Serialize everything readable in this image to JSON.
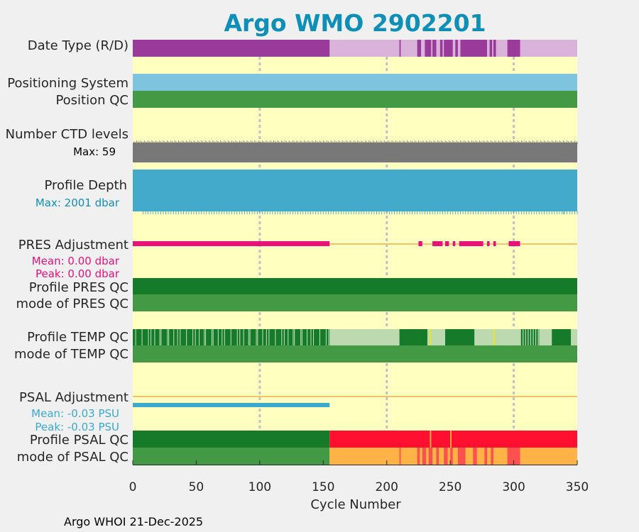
{
  "chart_data": {
    "type": "timeline-strip",
    "title": "Argo WMO 2902201",
    "xlabel": "Cycle Number",
    "xlim": [
      0,
      350
    ],
    "xticks": [
      0,
      50,
      100,
      150,
      200,
      250,
      300,
      350
    ],
    "grid_x": [
      100,
      200,
      300
    ],
    "footer": "Argo WHOI 21-Dec-2025",
    "colors": {
      "background": "#ffffc0",
      "title": "#0e8fb8",
      "real_time": "#dab3da",
      "delayed": "#9a3a9a",
      "positioning": "#7ec4df",
      "qc_good": "#449944",
      "qc_dark": "#157a2a",
      "qc_light": "#bcd9b0",
      "qc_yellow": "#f2e600",
      "qc_bad": "#ff1030",
      "qc_orange": "#ffb347",
      "qc_mixed": "#ff5050",
      "ctd": "#787878",
      "depth": "#44aacc",
      "pres": "#e8107a",
      "zero_line": "#f5c26b",
      "psal": "#3aa9cf"
    },
    "rows": {
      "data_type": {
        "label": "Date Type (R/D)",
        "realtime_cycles": [
          155,
          350
        ],
        "delayed_cycles": [
          [
            0,
            155
          ],
          [
            210,
            211
          ],
          [
            224,
            227
          ],
          [
            230,
            235
          ],
          [
            236,
            239
          ],
          [
            242,
            244
          ],
          [
            245,
            252
          ],
          [
            254,
            256
          ],
          [
            258,
            279
          ],
          [
            281,
            283
          ],
          [
            284,
            286
          ],
          [
            295,
            305
          ]
        ]
      },
      "positioning": {
        "label": "Positioning System"
      },
      "position_qc": {
        "label": "Position QC"
      },
      "ctd_levels": {
        "label": "Number CTD levels",
        "max_text": "Max: 59",
        "max": 59
      },
      "profile_depth": {
        "label": "Profile Depth",
        "max_text": "Max: 2001 dbar",
        "max_dbar": 2001
      },
      "pres_adjustment": {
        "label": "PRES Adjustment",
        "mean_text": "Mean: 0.00 dbar",
        "peak_text": "Peak: 0.00 dbar",
        "mean_dbar": 0.0,
        "peak_dbar": 0.0,
        "segments": [
          [
            0,
            155
          ],
          [
            225,
            228
          ],
          [
            236,
            244
          ],
          [
            246,
            249
          ],
          [
            252,
            254
          ],
          [
            257,
            276
          ],
          [
            279,
            281
          ],
          [
            284,
            286
          ],
          [
            296,
            305
          ]
        ]
      },
      "profile_pres_qc": {
        "label": "Profile PRES QC"
      },
      "mode_pres_qc": {
        "label": "mode of PRES QC"
      },
      "profile_temp_qc": {
        "label": "Profile TEMP QC",
        "light": [
          [
            155,
            210
          ],
          [
            232,
            246
          ],
          [
            269,
            305
          ],
          [
            320,
            330
          ],
          [
            345,
            350
          ]
        ],
        "yellow": [
          234,
          284
        ]
      },
      "mode_temp_qc": {
        "label": "mode of TEMP QC"
      },
      "psal_adjustment": {
        "label": "PSAL Adjustment",
        "mean_text": "Mean: -0.03 PSU",
        "peak_text": "Peak: -0.03 PSU",
        "mean_psu": -0.03,
        "peak_psu": -0.03,
        "segments": [
          [
            0,
            155
          ]
        ]
      },
      "profile_psal_qc": {
        "label": "Profile PSAL QC",
        "good": [
          0,
          155
        ],
        "bad": [
          155,
          350
        ]
      },
      "mode_psal_qc": {
        "label": "mode of PSAL QC",
        "good": [
          0,
          155
        ],
        "orange": [
          155,
          350
        ],
        "mixed": [
          [
            210,
            211
          ],
          [
            224,
            226
          ],
          [
            228,
            231
          ],
          [
            233,
            236
          ],
          [
            239,
            241
          ],
          [
            245,
            248
          ],
          [
            250,
            252
          ],
          [
            256,
            262
          ],
          [
            268,
            271
          ],
          [
            277,
            279
          ],
          [
            282,
            284
          ],
          [
            295,
            305
          ]
        ]
      }
    }
  }
}
